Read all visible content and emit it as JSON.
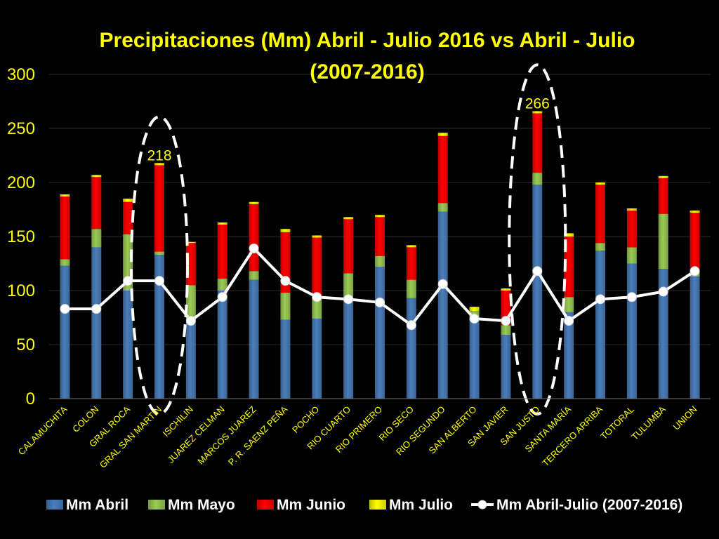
{
  "chart_data": {
    "type": "bar",
    "stacked": true,
    "title": "Precipitaciones  (Mm) Abril - Julio 2016   vs  Abril - Julio",
    "subtitle": "(2007-2016)",
    "xlabel": "",
    "ylabel": "",
    "ylim": [
      0,
      300
    ],
    "yticks": [
      "0",
      "50",
      "100",
      "150",
      "200",
      "250",
      "300"
    ],
    "grid": true,
    "legend_position": "bottom",
    "categories": [
      "CALAMUCHITA",
      "COLON",
      "GRAL ROCA",
      "GRAL SAN MARTIN",
      "ISCHILIN",
      "JUAREZ CELMAN",
      "MARCOS JUAREZ",
      "P. R. SAENZ PEÑA",
      "POCHO",
      "RIO CUARTO",
      "RIO PRIMERO",
      "RIO SECO",
      "RIO SEGUNDO",
      "SAN ALBERTO",
      "SAN JAVIER",
      "SAN JUSTO",
      "SANTA MARÍA",
      "TERCERO ARRIBA",
      "TOTORAL",
      "TULUMBA",
      "UNION"
    ],
    "series": [
      {
        "name": "Mm Abril",
        "color": "#4A7EBB",
        "values": [
          123,
          140,
          100,
          133,
          73,
          100,
          110,
          73,
          74,
          90,
          122,
          93,
          173,
          74,
          59,
          198,
          80,
          137,
          125,
          120,
          113
        ]
      },
      {
        "name": "Mm Mayo",
        "color": "#9BCB55",
        "values": [
          6,
          17,
          52,
          3,
          32,
          11,
          8,
          25,
          19,
          26,
          10,
          17,
          8,
          7,
          9,
          11,
          14,
          7,
          15,
          51,
          6
        ]
      },
      {
        "name": "Mm Junio",
        "color": "#FF0000",
        "values": [
          58,
          48,
          30,
          80,
          39,
          50,
          62,
          56,
          56,
          50,
          36,
          30,
          62,
          0,
          32,
          55,
          56,
          54,
          34,
          33,
          53
        ]
      },
      {
        "name": "Mm Julio",
        "color": "#FFFF00",
        "values": [
          2,
          2,
          3,
          2,
          1,
          2,
          2,
          3,
          2,
          2,
          2,
          2,
          3,
          4,
          2,
          2,
          3,
          2,
          2,
          2,
          2
        ]
      }
    ],
    "line_series": {
      "name": "Mm Abril-Julio  (2007-2016)",
      "color": "#FFFFFF",
      "values": [
        83,
        83,
        109,
        109,
        72,
        94,
        139,
        109,
        94,
        92,
        89,
        68,
        106,
        74,
        72,
        118,
        72,
        92,
        94,
        99,
        118
      ]
    },
    "annotations": [
      {
        "category": "GRAL SAN MARTIN",
        "value": 218,
        "label": "218"
      },
      {
        "category": "SAN JUSTO",
        "value": 266,
        "label": "266"
      }
    ]
  }
}
